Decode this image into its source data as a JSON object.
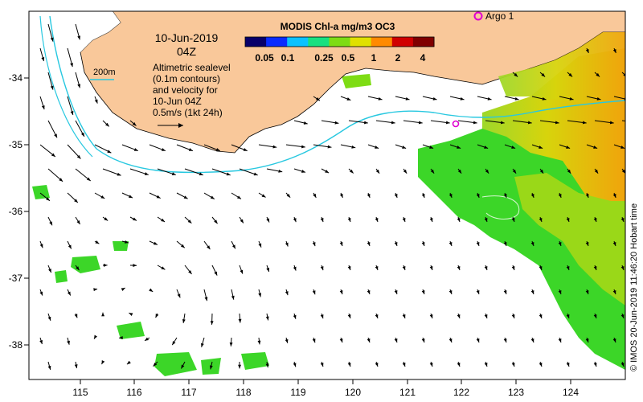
{
  "title": {
    "date": "10-Jun-2019",
    "time": "04Z"
  },
  "colorbar": {
    "title": "MODIS Chl-a mg/m3 OC3",
    "ticks": [
      "0.05",
      "0.1",
      "0.25",
      "0.5",
      "1",
      "2",
      "4"
    ],
    "colors": [
      "#08006a",
      "#0a2cff",
      "#0bc2ff",
      "#18e080",
      "#7edc14",
      "#e0e000",
      "#ff8a00",
      "#d00000",
      "#800000"
    ]
  },
  "legend": {
    "contour_label": "200m",
    "description_lines": [
      "Altimetric sealevel",
      "(0.1m contours)",
      "and velocity for",
      "10-Jun 04Z"
    ],
    "vector_scale": "0.5m/s (1kt 24h)"
  },
  "argo": {
    "label": "Argo 1",
    "color": "#e000d0"
  },
  "axes": {
    "x_ticks": [
      "115",
      "116",
      "117",
      "118",
      "119",
      "120",
      "121",
      "122",
      "123",
      "124"
    ],
    "y_ticks": [
      "-34",
      "-35",
      "-36",
      "-37",
      "-38"
    ]
  },
  "credit": "© IMOS 20-Jun-2019 11:46:20 Hobart time",
  "colors": {
    "land": "#f9c89a",
    "contour": "#28c8e0",
    "frame": "#000000"
  }
}
